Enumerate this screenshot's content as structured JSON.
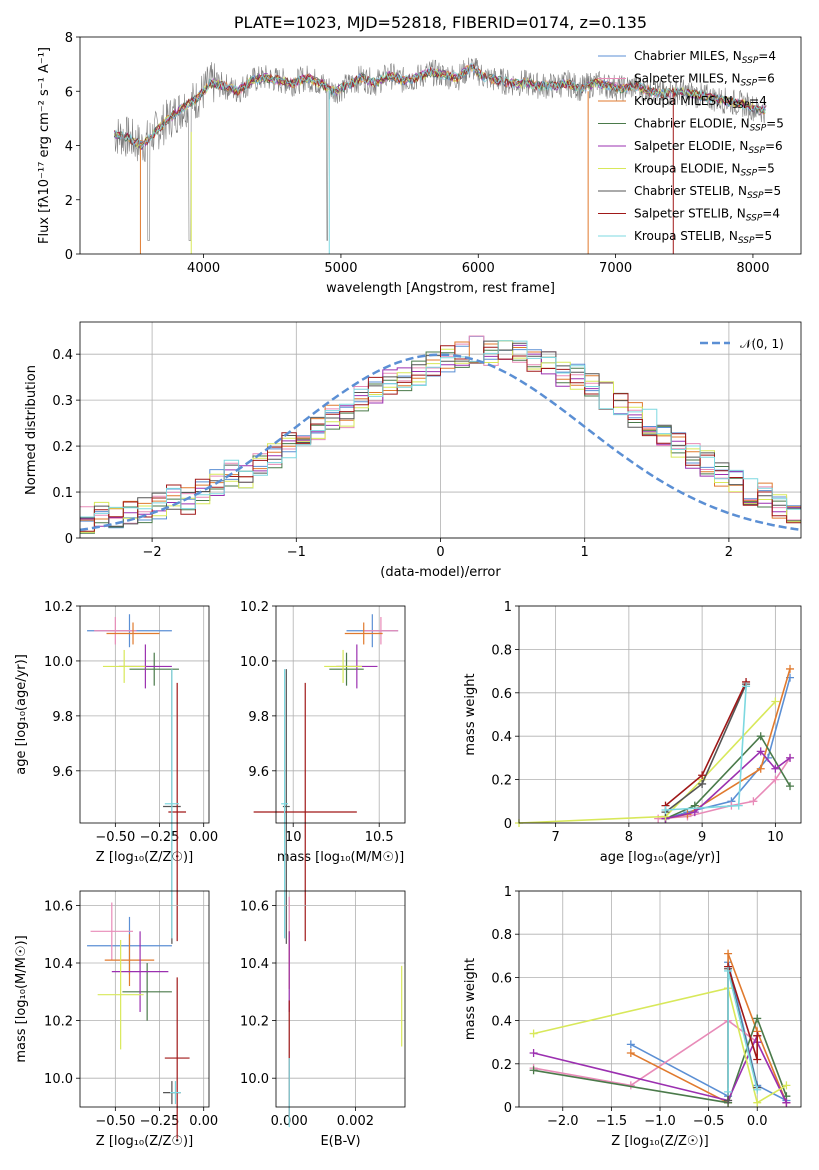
{
  "chart_data": [
    {
      "id": "spectrum",
      "type": "line",
      "title": "PLATE=1023, MJD=52818, FIBERID=0174, z=0.135",
      "xlabel": "wavelength [Angstrom, rest frame]",
      "ylabel": "Flux [fλ10⁻¹⁷ erg cm⁻² s⁻¹ A⁻¹]",
      "xlim": [
        3100,
        8350
      ],
      "ylim": [
        0,
        8
      ],
      "xticks": [
        4000,
        5000,
        6000,
        7000,
        8000
      ],
      "yticks": [
        0,
        2,
        4,
        6,
        8
      ],
      "grid": false,
      "legend_position": "top-right",
      "data_x": [
        3350,
        3450,
        3550,
        3650,
        3750,
        3850,
        3950,
        4050,
        4150,
        4250,
        4350,
        4450,
        4550,
        4650,
        4750,
        4850,
        4950,
        5050,
        5150,
        5250,
        5350,
        5450,
        5550,
        5650,
        5750,
        5850,
        5950,
        6050,
        6150,
        6250,
        6350,
        6450,
        6550,
        6650,
        6750,
        6850,
        6950,
        7050,
        7150,
        7250,
        7350,
        7450,
        7550,
        7650,
        7750,
        7850,
        7950,
        8050
      ],
      "data_y": [
        4.4,
        4.3,
        4.0,
        4.5,
        5.0,
        5.4,
        5.7,
        6.3,
        6.2,
        6.0,
        6.4,
        6.5,
        6.4,
        6.3,
        6.5,
        6.3,
        6.0,
        6.2,
        6.5,
        6.3,
        6.6,
        6.4,
        6.5,
        6.7,
        6.6,
        6.5,
        6.9,
        6.5,
        6.4,
        6.3,
        6.3,
        6.2,
        6.2,
        6.3,
        6.1,
        6.3,
        6.2,
        6.1,
        6.2,
        6.0,
        5.9,
        6.0,
        5.9,
        5.8,
        5.7,
        5.6,
        5.5,
        5.3
      ],
      "series": [
        {
          "name": "Chabrier MILES, N_SSP=4",
          "color": "#5b8fd4"
        },
        {
          "name": "Salpeter MILES, N_SSP=6",
          "color": "#e88bb8"
        },
        {
          "name": "Kroupa MILES, N_SSP=4",
          "color": "#e07a2e"
        },
        {
          "name": "Chabrier ELODIE, N_SSP=5",
          "color": "#4a7a4a"
        },
        {
          "name": "Salpeter ELODIE, N_SSP=6",
          "color": "#9b30b0"
        },
        {
          "name": "Kroupa ELODIE, N_SSP=5",
          "color": "#d8e85a"
        },
        {
          "name": "Chabrier STELIB, N_SSP=5",
          "color": "#555555"
        },
        {
          "name": "Salpeter STELIB, N_SSP=4",
          "color": "#a01818"
        },
        {
          "name": "Kroupa STELIB, N_SSP=5",
          "color": "#7dd8e0"
        }
      ]
    },
    {
      "id": "residuals",
      "type": "area",
      "xlabel": "(data-model)/error",
      "ylabel": "Normed distribution",
      "xlim": [
        -2.5,
        2.5
      ],
      "ylim": [
        0,
        0.47
      ],
      "xticks": [
        -2,
        -1,
        0,
        1,
        2
      ],
      "yticks": [
        0.0,
        0.1,
        0.2,
        0.3,
        0.4
      ],
      "grid": true,
      "legend_position": "top-right",
      "legend": "𝒩(0, 1)",
      "bins_start": -2.5,
      "bin_width": 0.1,
      "hist_values": [
        0.04,
        0.05,
        0.04,
        0.05,
        0.06,
        0.07,
        0.09,
        0.08,
        0.1,
        0.12,
        0.14,
        0.13,
        0.16,
        0.18,
        0.2,
        0.22,
        0.24,
        0.26,
        0.27,
        0.3,
        0.32,
        0.34,
        0.35,
        0.36,
        0.38,
        0.39,
        0.4,
        0.41,
        0.4,
        0.41,
        0.4,
        0.39,
        0.38,
        0.36,
        0.35,
        0.33,
        0.31,
        0.29,
        0.27,
        0.25,
        0.22,
        0.2,
        0.18,
        0.16,
        0.14,
        0.12,
        0.1,
        0.09,
        0.07,
        0.05
      ]
    },
    {
      "id": "age-vs-Z",
      "type": "scatter",
      "xlabel": "Z [log₁₀(Z/Z☉)]",
      "ylabel": "age  [log₁₀(age/yr)]",
      "xlim": [
        -0.7,
        0.03
      ],
      "ylim": [
        9.41,
        10.2
      ],
      "xticks": [
        -0.5,
        -0.25,
        0.0
      ],
      "xtick_labels": [
        "−0.50",
        "−0.25",
        "0.00"
      ],
      "yticks": [
        9.6,
        9.8,
        10.0,
        10.2
      ],
      "ytick_labels": [
        "9.6",
        "9.8",
        "10.0",
        "10.2"
      ],
      "grid": true,
      "points": [
        {
          "x": -0.42,
          "y": 10.11,
          "xerr": 0.24,
          "yerr": 0.06,
          "color": "#5b8fd4"
        },
        {
          "x": -0.5,
          "y": 10.11,
          "xerr": 0.12,
          "yerr": 0.05,
          "color": "#e88bb8"
        },
        {
          "x": -0.4,
          "y": 10.1,
          "xerr": 0.15,
          "yerr": 0.04,
          "color": "#e07a2e"
        },
        {
          "x": -0.28,
          "y": 9.97,
          "xerr": 0.14,
          "yerr": 0.06,
          "color": "#4a7a4a"
        },
        {
          "x": -0.33,
          "y": 9.98,
          "xerr": 0.15,
          "yerr": 0.08,
          "color": "#9b30b0"
        },
        {
          "x": -0.45,
          "y": 9.98,
          "xerr": 0.12,
          "yerr": 0.06,
          "color": "#d8e85a"
        },
        {
          "x": -0.18,
          "y": 9.47,
          "xerr": 0.05,
          "yerr": 0.5,
          "color": "#555555"
        },
        {
          "x": -0.15,
          "y": 9.45,
          "xerr": 0.05,
          "yerr": 0.47,
          "color": "#a01818"
        },
        {
          "x": -0.18,
          "y": 9.48,
          "xerr": 0.04,
          "yerr": 0.49,
          "color": "#7dd8e0"
        }
      ]
    },
    {
      "id": "age-vs-mass",
      "type": "scatter",
      "xlabel": "mass [log₁₀(M/M☉)]",
      "ylabel": "",
      "xlim": [
        9.9,
        10.65
      ],
      "ylim": [
        9.41,
        10.2
      ],
      "xticks": [
        10.0,
        10.5
      ],
      "xtick_labels": [
        "10",
        "10.5"
      ],
      "yticks": [
        9.6,
        9.8,
        10.0,
        10.2
      ],
      "ytick_labels": [
        "9.6",
        "9.8",
        "10.0",
        "10.2"
      ],
      "grid": true,
      "points": [
        {
          "x": 10.46,
          "y": 10.11,
          "xerr": 0.15,
          "yerr": 0.06,
          "color": "#5b8fd4"
        },
        {
          "x": 10.51,
          "y": 10.11,
          "xerr": 0.1,
          "yerr": 0.05,
          "color": "#e88bb8"
        },
        {
          "x": 10.41,
          "y": 10.1,
          "xerr": 0.11,
          "yerr": 0.04,
          "color": "#e07a2e"
        },
        {
          "x": 10.31,
          "y": 9.97,
          "xerr": 0.1,
          "yerr": 0.06,
          "color": "#4a7a4a"
        },
        {
          "x": 10.37,
          "y": 9.98,
          "xerr": 0.12,
          "yerr": 0.08,
          "color": "#9b30b0"
        },
        {
          "x": 10.29,
          "y": 9.98,
          "xerr": 0.11,
          "yerr": 0.06,
          "color": "#d8e85a"
        },
        {
          "x": 9.96,
          "y": 9.47,
          "xerr": 0.02,
          "yerr": 0.5,
          "color": "#555555"
        },
        {
          "x": 10.07,
          "y": 9.45,
          "xerr": 0.3,
          "yerr": 0.47,
          "color": "#a01818"
        },
        {
          "x": 9.95,
          "y": 9.48,
          "xerr": 0.02,
          "yerr": 0.49,
          "color": "#7dd8e0"
        }
      ]
    },
    {
      "id": "mass-weight-vs-age",
      "type": "line",
      "xlabel": "age  [log₁₀(age/yr)]",
      "ylabel": "mass weight",
      "xlim": [
        6.5,
        10.35
      ],
      "ylim": [
        0,
        1
      ],
      "xticks": [
        7,
        8,
        9,
        10
      ],
      "yticks": [
        0.0,
        0.2,
        0.4,
        0.6,
        0.8,
        1.0
      ],
      "grid": true,
      "series": [
        {
          "name": "Chabrier MILES",
          "color": "#5b8fd4",
          "x": [
            8.5,
            8.8,
            9.4,
            9.9,
            10.2
          ],
          "y": [
            0.02,
            0.05,
            0.1,
            0.3,
            0.67
          ]
        },
        {
          "name": "Salpeter MILES",
          "color": "#e88bb8",
          "x": [
            8.4,
            8.8,
            9.4,
            9.7,
            10.0,
            10.2
          ],
          "y": [
            0.02,
            0.03,
            0.08,
            0.1,
            0.2,
            0.3
          ]
        },
        {
          "name": "Kroupa MILES",
          "color": "#e07a2e",
          "x": [
            8.5,
            8.8,
            9.8,
            10.2
          ],
          "y": [
            0.02,
            0.04,
            0.25,
            0.71
          ]
        },
        {
          "name": "Chabrier ELODIE",
          "color": "#4a7a4a",
          "x": [
            8.5,
            8.9,
            9.8,
            10.2
          ],
          "y": [
            0.02,
            0.08,
            0.4,
            0.17
          ]
        },
        {
          "name": "Salpeter ELODIE",
          "color": "#9b30b0",
          "x": [
            8.5,
            8.9,
            9.8,
            10.0,
            10.2
          ],
          "y": [
            0.02,
            0.05,
            0.33,
            0.25,
            0.3
          ]
        },
        {
          "name": "Kroupa ELODIE",
          "color": "#d8e85a",
          "x": [
            6.5,
            8.5,
            9.0,
            10.0
          ],
          "y": [
            0.0,
            0.03,
            0.2,
            0.56
          ]
        },
        {
          "name": "Chabrier STELIB",
          "color": "#555555",
          "x": [
            8.5,
            9.0,
            9.6
          ],
          "y": [
            0.05,
            0.18,
            0.64
          ]
        },
        {
          "name": "Salpeter STELIB",
          "color": "#a01818",
          "x": [
            8.5,
            9.0,
            9.6
          ],
          "y": [
            0.08,
            0.22,
            0.65
          ]
        },
        {
          "name": "Kroupa STELIB",
          "color": "#7dd8e0",
          "x": [
            8.5,
            9.5,
            9.6
          ],
          "y": [
            0.06,
            0.08,
            0.63
          ]
        }
      ]
    },
    {
      "id": "mass-vs-Z",
      "type": "scatter",
      "xlabel": "Z [log₁₀(Z/Z☉)]",
      "ylabel": "mass [log₁₀(M/M☉)]",
      "xlim": [
        -0.7,
        0.03
      ],
      "ylim": [
        9.9,
        10.65
      ],
      "xticks": [
        -0.5,
        -0.25,
        0.0
      ],
      "xtick_labels": [
        "−0.50",
        "−0.25",
        "0.00"
      ],
      "yticks": [
        10.0,
        10.2,
        10.4,
        10.6
      ],
      "ytick_labels": [
        "10.0",
        "10.2",
        "10.4",
        "10.6"
      ],
      "grid": true,
      "points": [
        {
          "x": -0.42,
          "y": 10.46,
          "xerr": 0.24,
          "yerr": 0.1,
          "color": "#5b8fd4"
        },
        {
          "x": -0.52,
          "y": 10.51,
          "xerr": 0.12,
          "yerr": 0.1,
          "color": "#e88bb8"
        },
        {
          "x": -0.42,
          "y": 10.41,
          "xerr": 0.14,
          "yerr": 0.09,
          "color": "#e07a2e"
        },
        {
          "x": -0.32,
          "y": 10.3,
          "xerr": 0.14,
          "yerr": 0.1,
          "color": "#4a7a4a"
        },
        {
          "x": -0.36,
          "y": 10.37,
          "xerr": 0.16,
          "yerr": 0.14,
          "color": "#9b30b0"
        },
        {
          "x": -0.47,
          "y": 10.29,
          "xerr": 0.13,
          "yerr": 0.19,
          "color": "#d8e85a"
        },
        {
          "x": -0.18,
          "y": 9.95,
          "xerr": 0.05,
          "yerr": 0.04,
          "color": "#555555"
        },
        {
          "x": -0.15,
          "y": 10.07,
          "xerr": 0.07,
          "yerr": 0.28,
          "color": "#a01818"
        },
        {
          "x": -0.16,
          "y": 9.95,
          "xerr": 0.03,
          "yerr": 0.04,
          "color": "#7dd8e0"
        }
      ]
    },
    {
      "id": "mass-vs-ebv",
      "type": "scatter",
      "xlabel": "E(B-V)",
      "ylabel": "",
      "xlim": [
        -0.0004,
        0.0035
      ],
      "ylim": [
        9.9,
        10.65
      ],
      "xticks": [
        0.0,
        0.002
      ],
      "xtick_labels": [
        "0.000",
        "0.002"
      ],
      "yticks": [
        10.0,
        10.2,
        10.4,
        10.6
      ],
      "ytick_labels": [
        "10.0",
        "10.2",
        "10.4",
        "10.6"
      ],
      "grid": true,
      "points": [
        {
          "x": 0.0,
          "y": 10.51,
          "yerr": 0.12,
          "color": "#e88bb8"
        },
        {
          "x": 0.0,
          "y": 10.41,
          "yerr": 0.1,
          "color": "#e07a2e"
        },
        {
          "x": 0.0,
          "y": 10.37,
          "yerr": 0.14,
          "color": "#9b30b0"
        },
        {
          "x": 0.0,
          "y": 10.07,
          "yerr": 0.2,
          "color": "#a01818"
        },
        {
          "x": 0.0,
          "y": 9.95,
          "yerr": 0.12,
          "color": "#7dd8e0"
        },
        {
          "x": 0.0034,
          "y": 10.25,
          "yerr": 0.14,
          "color": "#d8e85a"
        }
      ]
    },
    {
      "id": "mass-weight-vs-Z",
      "type": "line",
      "xlabel": "Z [log₁₀(Z/Z☉)]",
      "ylabel": "mass weight",
      "xlim": [
        -2.45,
        0.45
      ],
      "ylim": [
        0,
        1
      ],
      "xticks": [
        -2.0,
        -1.5,
        -1.0,
        -0.5,
        0.0
      ],
      "xtick_labels": [
        "−2.0",
        "−1.5",
        "−1.0",
        "−0.5",
        "0.0"
      ],
      "yticks": [
        0.0,
        0.2,
        0.4,
        0.6,
        0.8,
        1.0
      ],
      "grid": true,
      "series": [
        {
          "name": "Chabrier MILES",
          "color": "#5b8fd4",
          "x": [
            -1.3,
            -0.3,
            -0.3,
            0.0,
            0.3
          ],
          "y": [
            0.29,
            0.05,
            0.67,
            0.1,
            0.03
          ]
        },
        {
          "name": "Salpeter MILES",
          "color": "#e88bb8",
          "x": [
            -2.3,
            -1.3,
            -0.3,
            0.0,
            0.3
          ],
          "y": [
            0.18,
            0.1,
            0.4,
            0.3,
            0.02
          ]
        },
        {
          "name": "Kroupa MILES",
          "color": "#e07a2e",
          "x": [
            -1.3,
            -0.3,
            -0.3,
            0.0,
            0.3
          ],
          "y": [
            0.25,
            0.02,
            0.71,
            0.35,
            0.02
          ]
        },
        {
          "name": "Chabrier ELODIE",
          "color": "#4a7a4a",
          "x": [
            -2.3,
            -0.3,
            0.0,
            0.3
          ],
          "y": [
            0.17,
            0.02,
            0.41,
            0.05
          ]
        },
        {
          "name": "Salpeter ELODIE",
          "color": "#9b30b0",
          "x": [
            -2.3,
            -0.3,
            0.0,
            0.0,
            0.3
          ],
          "y": [
            0.25,
            0.03,
            0.33,
            0.3,
            0.02
          ]
        },
        {
          "name": "Kroupa ELODIE",
          "color": "#d8e85a",
          "x": [
            -2.3,
            -0.3,
            0.0,
            0.3
          ],
          "y": [
            0.34,
            0.55,
            0.02,
            0.1
          ]
        },
        {
          "name": "Chabrier STELIB",
          "color": "#555555",
          "x": [
            -0.3,
            -0.3,
            0.0
          ],
          "y": [
            0.03,
            0.64,
            0.09
          ]
        },
        {
          "name": "Salpeter STELIB",
          "color": "#a01818",
          "x": [
            -0.3,
            0.0,
            0.0
          ],
          "y": [
            0.65,
            0.22,
            0.33
          ]
        },
        {
          "name": "Kroupa STELIB",
          "color": "#7dd8e0",
          "x": [
            -0.3,
            -0.3,
            0.0
          ],
          "y": [
            0.07,
            0.63,
            0.08
          ]
        }
      ]
    }
  ]
}
